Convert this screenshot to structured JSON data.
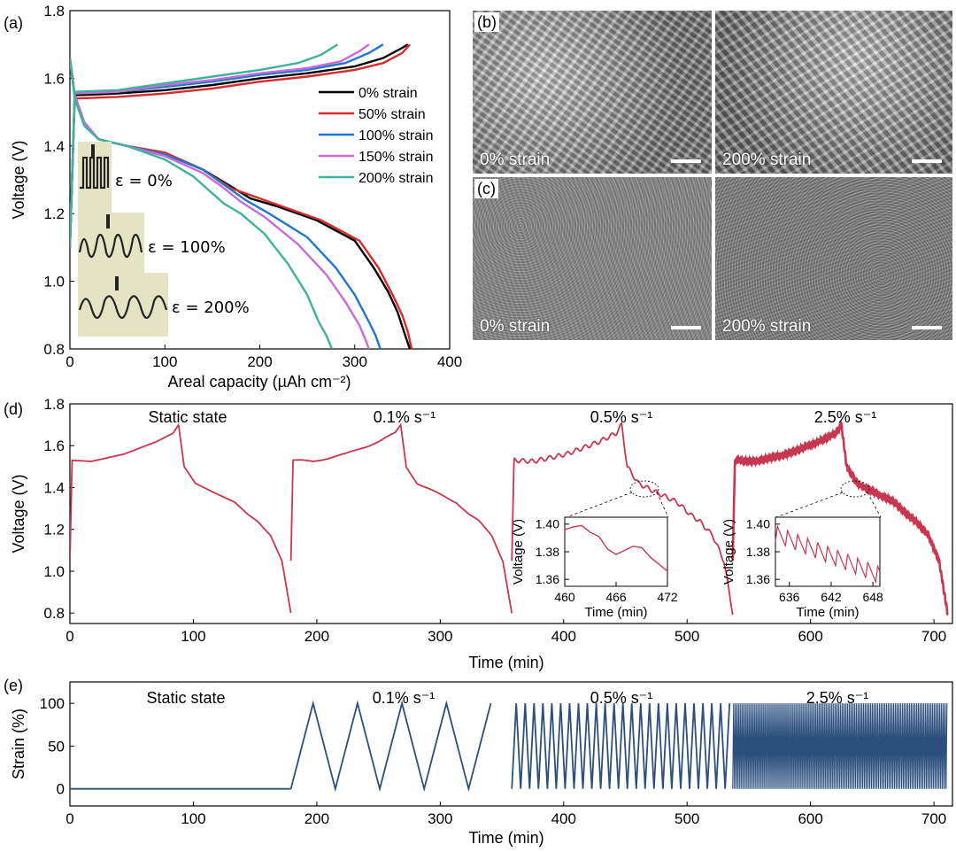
{
  "panel_a": {
    "label": "(a)",
    "inset_labels": [
      "ε = 0%",
      "ε = 100%",
      "ε = 200%"
    ]
  },
  "panel_b": {
    "label": "(b)",
    "images": [
      "0% strain",
      "200% strain"
    ]
  },
  "panel_c": {
    "label": "(c)",
    "images": [
      "0% strain",
      "200% strain"
    ]
  },
  "panel_d": {
    "label": "(d)"
  },
  "panel_e": {
    "label": "(e)"
  },
  "colors": {
    "0%": "#000000",
    "50%": "#d62b2b",
    "100%": "#1f77d0",
    "150%": "#c86ad8",
    "200%": "#3fb39a",
    "voltage_trace": "#c8374f",
    "strain_trace": "#2c4f7c"
  },
  "chart_data": [
    {
      "id": "a",
      "type": "line",
      "title": "",
      "xlabel": "Areal capacity (µAh cm⁻²)",
      "ylabel": "Voltage (V)",
      "xlim": [
        0,
        400
      ],
      "ylim": [
        0.8,
        1.8
      ],
      "xticks": [
        0,
        100,
        200,
        300,
        400
      ],
      "yticks": [
        0.8,
        1.0,
        1.2,
        1.4,
        1.6,
        1.8
      ],
      "legend": "right-middle",
      "series": [
        {
          "name": "0% strain",
          "color": "#000000",
          "charge_x": [
            0,
            5,
            50,
            100,
            150,
            200,
            250,
            300,
            330,
            350,
            356
          ],
          "charge_y": [
            1.1,
            1.55,
            1.555,
            1.565,
            1.58,
            1.6,
            1.615,
            1.635,
            1.66,
            1.69,
            1.7
          ],
          "discharge_x": [
            0,
            5,
            15,
            30,
            60,
            100,
            140,
            170,
            190,
            220,
            260,
            300,
            320,
            335,
            345,
            352,
            358
          ],
          "discharge_y": [
            1.66,
            1.55,
            1.47,
            1.42,
            1.4,
            1.38,
            1.33,
            1.28,
            1.245,
            1.22,
            1.18,
            1.12,
            1.04,
            0.97,
            0.91,
            0.85,
            0.8
          ]
        },
        {
          "name": "50% strain",
          "color": "#d62b2b",
          "charge_x": [
            0,
            5,
            50,
            100,
            150,
            200,
            250,
            300,
            330,
            350,
            358
          ],
          "charge_y": [
            1.1,
            1.54,
            1.545,
            1.555,
            1.57,
            1.59,
            1.605,
            1.625,
            1.645,
            1.675,
            1.7
          ],
          "discharge_x": [
            0,
            5,
            15,
            30,
            60,
            100,
            140,
            170,
            195,
            225,
            265,
            305,
            325,
            340,
            350,
            356,
            360
          ],
          "discharge_y": [
            1.65,
            1.55,
            1.47,
            1.42,
            1.4,
            1.38,
            1.33,
            1.275,
            1.25,
            1.22,
            1.18,
            1.12,
            1.04,
            0.96,
            0.9,
            0.85,
            0.8
          ]
        },
        {
          "name": "100% strain",
          "color": "#1f77d0",
          "charge_x": [
            0,
            5,
            50,
            100,
            150,
            200,
            250,
            290,
            315,
            330
          ],
          "charge_y": [
            1.1,
            1.555,
            1.56,
            1.575,
            1.59,
            1.61,
            1.625,
            1.645,
            1.675,
            1.7
          ],
          "discharge_x": [
            0,
            5,
            15,
            30,
            60,
            100,
            140,
            165,
            185,
            210,
            250,
            280,
            300,
            315,
            322,
            327
          ],
          "discharge_y": [
            1.66,
            1.55,
            1.47,
            1.42,
            1.4,
            1.375,
            1.33,
            1.28,
            1.24,
            1.2,
            1.13,
            1.04,
            0.96,
            0.88,
            0.84,
            0.8
          ]
        },
        {
          "name": "150% strain",
          "color": "#c86ad8",
          "charge_x": [
            0,
            5,
            50,
            100,
            150,
            200,
            250,
            285,
            305,
            315
          ],
          "charge_y": [
            1.1,
            1.555,
            1.56,
            1.58,
            1.595,
            1.615,
            1.63,
            1.65,
            1.68,
            1.7
          ],
          "discharge_x": [
            0,
            5,
            15,
            30,
            60,
            100,
            140,
            160,
            180,
            205,
            240,
            270,
            290,
            305,
            311,
            315
          ],
          "discharge_y": [
            1.66,
            1.55,
            1.47,
            1.42,
            1.4,
            1.37,
            1.32,
            1.28,
            1.235,
            1.19,
            1.11,
            1.02,
            0.94,
            0.87,
            0.83,
            0.8
          ]
        },
        {
          "name": "200% strain",
          "color": "#3fb39a",
          "charge_x": [
            0,
            5,
            50,
            100,
            150,
            200,
            240,
            265,
            282
          ],
          "charge_y": [
            1.1,
            1.56,
            1.565,
            1.585,
            1.605,
            1.625,
            1.645,
            1.67,
            1.7
          ],
          "discharge_x": [
            0,
            5,
            15,
            30,
            60,
            100,
            130,
            150,
            162,
            180,
            205,
            230,
            250,
            262,
            270,
            276
          ],
          "discharge_y": [
            1.66,
            1.54,
            1.46,
            1.42,
            1.4,
            1.36,
            1.31,
            1.26,
            1.23,
            1.2,
            1.14,
            1.05,
            0.96,
            0.88,
            0.84,
            0.8
          ]
        }
      ]
    },
    {
      "id": "d",
      "type": "line",
      "xlabel": "Time (min)",
      "ylabel": "Voltage (V)",
      "xlim": [
        0,
        715
      ],
      "ylim": [
        0.75,
        1.8
      ],
      "xticks": [
        0,
        100,
        200,
        300,
        400,
        500,
        600,
        700
      ],
      "yticks": [
        0.8,
        1.0,
        1.2,
        1.4,
        1.6,
        1.8
      ],
      "rate_labels": [
        "Static state",
        "0.1% s⁻¹",
        "0.5% s⁻¹",
        "2.5% s⁻¹"
      ],
      "cycles": [
        {
          "start": 0,
          "charge_end": 88,
          "end": 179,
          "ripple": 0,
          "ripple_period": 0
        },
        {
          "start": 179,
          "charge_end": 268,
          "end": 358,
          "ripple": 0.004,
          "ripple_period": 36
        },
        {
          "start": 358,
          "charge_end": 447,
          "end": 537,
          "ripple": 0.01,
          "ripple_period": 7.2
        },
        {
          "start": 537,
          "charge_end": 625,
          "end": 711,
          "ripple": 0.012,
          "ripple_period": 1.44
        }
      ],
      "charge_profile_t": [
        0,
        0.02,
        0.2,
        0.5,
        0.8,
        0.95,
        1.0
      ],
      "charge_profile_v": [
        1.05,
        1.53,
        1.525,
        1.56,
        1.62,
        1.66,
        1.7
      ],
      "discharge_profile_t": [
        0,
        0.05,
        0.15,
        0.3,
        0.5,
        0.62,
        0.7,
        0.82,
        0.92,
        1.0
      ],
      "discharge_profile_v": [
        1.7,
        1.5,
        1.42,
        1.38,
        1.33,
        1.27,
        1.24,
        1.17,
        1.05,
        0.8
      ],
      "insets": [
        {
          "xlabel": "Time (min)",
          "ylabel": "Voltage (V)",
          "xlim": [
            460,
            472
          ],
          "ylim": [
            1.355,
            1.405
          ],
          "xticks": [
            460,
            466,
            472
          ],
          "yticks": [
            1.36,
            1.38,
            1.4
          ],
          "x": [
            460,
            461,
            462,
            463,
            464,
            465,
            466,
            467,
            468,
            469,
            470,
            471,
            472
          ],
          "y": [
            1.396,
            1.398,
            1.399,
            1.394,
            1.391,
            1.382,
            1.378,
            1.381,
            1.384,
            1.383,
            1.376,
            1.371,
            1.366
          ]
        },
        {
          "xlabel": "Time (min)",
          "ylabel": "Voltage (V)",
          "xlim": [
            634,
            649
          ],
          "ylim": [
            1.355,
            1.405
          ],
          "xticks": [
            636,
            642,
            648
          ],
          "yticks": [
            1.36,
            1.38,
            1.4
          ],
          "start_v": 1.393,
          "end_v": 1.363,
          "period": 1.44,
          "amp": 0.012
        }
      ]
    },
    {
      "id": "e",
      "type": "line",
      "xlabel": "Time (min)",
      "ylabel": "Strain (%)",
      "xlim": [
        0,
        715
      ],
      "ylim": [
        -20,
        125
      ],
      "xticks": [
        0,
        100,
        200,
        300,
        400,
        500,
        600,
        700
      ],
      "yticks": [
        0,
        50,
        100
      ],
      "rate_labels": [
        "Static state",
        "0.1% s⁻¹",
        "0.5% s⁻¹",
        "2.5% s⁻¹"
      ],
      "segments": [
        {
          "from": 0,
          "to": 179,
          "period": 0
        },
        {
          "from": 179,
          "to": 358,
          "period": 36
        },
        {
          "from": 358,
          "to": 537,
          "period": 7.2
        },
        {
          "from": 537,
          "to": 711,
          "period": 1.44
        }
      ],
      "amplitude": 100
    }
  ]
}
